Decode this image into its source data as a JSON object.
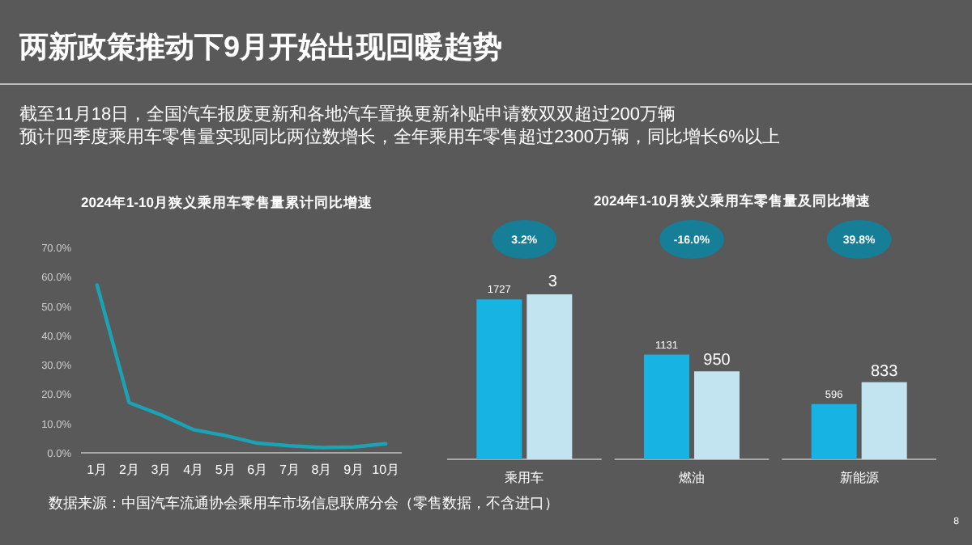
{
  "chart_data": [
    {
      "type": "other",
      "title": "两新政策推动下9月开始出现回暖趋势",
      "annotations": [
        "截至11月18日，全国汽车报废更新和各地汽车置换更新补贴申请数双双超过200万辆",
        "预计四季度乘用车零售量实现同比两位数增长，全年乘用车零售超过2300万辆，同比增长6%以上",
        "数据来源：中国汽车流通协会乘用车市场信息联席分会（零售数据，不含进口）",
        "8"
      ]
    },
    {
      "type": "line",
      "title": "2024年1-10月狭义乘用车零售量累计同比增速",
      "categories": [
        "1月",
        "2月",
        "3月",
        "4月",
        "5月",
        "6月",
        "7月",
        "8月",
        "9月",
        "10月"
      ],
      "series": [
        {
          "color": "#1aa3b5",
          "values": [
            57.2,
            17.1,
            12.9,
            7.9,
            5.9,
            3.3,
            2.4,
            1.8,
            2.0,
            3.1
          ]
        }
      ],
      "ylim": [
        0,
        70
      ],
      "yticks": [
        {
          "value": 0,
          "label": "0.0%"
        },
        {
          "value": 10,
          "label": "10.0%"
        },
        {
          "value": 20,
          "label": "20.0%"
        },
        {
          "value": 30,
          "label": "30.0%"
        },
        {
          "value": 40,
          "label": "40.0%"
        },
        {
          "value": 50,
          "label": "50.0%"
        },
        {
          "value": 60,
          "label": "60.0%"
        },
        {
          "value": 70,
          "label": "70.0%"
        }
      ],
      "marker": "none",
      "line_style": "solid"
    },
    {
      "type": "bar",
      "title": "2024年1-10月狭义乘用车零售量及同比增速",
      "categories": [
        "乘用车",
        "燃油",
        "新能源"
      ],
      "series": [
        {
          "color": "#17b3e3",
          "values": [
            1727,
            1131,
            596
          ],
          "value_labels": [
            "1727",
            "1131",
            "596"
          ]
        },
        {
          "color": "#c2e4f0",
          "values": [
            1782,
            950,
            833
          ],
          "value_labels": [
            null,
            "950",
            "833"
          ]
        }
      ],
      "annotations": [
        "3.2%",
        "-16.0%",
        "39.8%",
        "3"
      ]
    }
  ]
}
